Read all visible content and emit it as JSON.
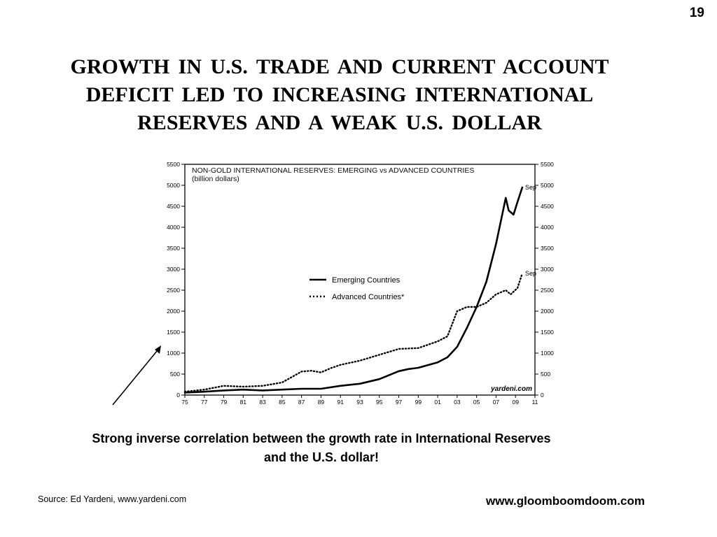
{
  "page": {
    "number": "19",
    "title_lines": [
      "GROWTH IN U.S. TRADE AND CURRENT ACCOUNT",
      "DEFICIT LED TO INCREASING INTERNATIONAL",
      "RESERVES AND A WEAK U.S. DOLLAR"
    ],
    "caption_lines": [
      "Strong inverse correlation between the growth rate in International Reserves",
      "and the U.S. dollar!"
    ],
    "source": "Source:  Ed Yardeni, www.yardeni.com",
    "website": "www.gloomboomdoom.com"
  },
  "chart_data": {
    "type": "line",
    "title": "NON-GOLD INTERNATIONAL RESERVES: EMERGING vs ADVANCED COUNTRIES",
    "subtitle": "(billion dollars)",
    "credit": "yardeni.com",
    "xlabel": "",
    "ylabel": "",
    "xlim": [
      1975,
      2011
    ],
    "ylim": [
      0,
      5500
    ],
    "x_ticks": [
      1975,
      1977,
      1979,
      1981,
      1983,
      1985,
      1987,
      1989,
      1991,
      1993,
      1995,
      1997,
      1999,
      2001,
      2003,
      2005,
      2007,
      2009,
      2011
    ],
    "x_tick_labels": [
      "75",
      "77",
      "79",
      "81",
      "83",
      "85",
      "87",
      "89",
      "91",
      "93",
      "95",
      "97",
      "99",
      "01",
      "03",
      "05",
      "07",
      "09",
      "11"
    ],
    "y_ticks": [
      0,
      500,
      1000,
      1500,
      2000,
      2500,
      3000,
      3500,
      4000,
      4500,
      5000,
      5500
    ],
    "y_tick_labels": [
      "0",
      "500",
      "1000",
      "1500",
      "2000",
      "2500",
      "3000",
      "3500",
      "4000",
      "4500",
      "5000",
      "5500"
    ],
    "grid": false,
    "legend_position": "center",
    "series": [
      {
        "name": "Emerging Countries",
        "style": "solid",
        "end_label": "Sep",
        "x": [
          1975,
          1977,
          1979,
          1981,
          1983,
          1985,
          1987,
          1989,
          1991,
          1993,
          1995,
          1997,
          1998,
          1999,
          2001,
          2002,
          2003,
          2004,
          2005,
          2006,
          2007,
          2008.0,
          2008.3,
          2008.8,
          2009.2,
          2009.7
        ],
        "values": [
          60,
          80,
          110,
          130,
          110,
          130,
          150,
          150,
          220,
          270,
          380,
          570,
          620,
          650,
          780,
          900,
          1150,
          1600,
          2100,
          2700,
          3600,
          4700,
          4400,
          4300,
          4600,
          4950
        ]
      },
      {
        "name": "Advanced Countries*",
        "style": "dotted",
        "end_label": "Sep",
        "x": [
          1975,
          1977,
          1979,
          1981,
          1983,
          1985,
          1987,
          1988,
          1989,
          1990,
          1991,
          1993,
          1995,
          1997,
          1999,
          2001,
          2002,
          2003,
          2004,
          2005,
          2006,
          2007,
          2008,
          2008.5,
          2009.2,
          2009.7
        ],
        "values": [
          80,
          130,
          220,
          200,
          220,
          300,
          560,
          580,
          540,
          640,
          720,
          820,
          960,
          1100,
          1120,
          1280,
          1400,
          2000,
          2100,
          2100,
          2200,
          2400,
          2500,
          2400,
          2550,
          2900
        ]
      }
    ]
  }
}
